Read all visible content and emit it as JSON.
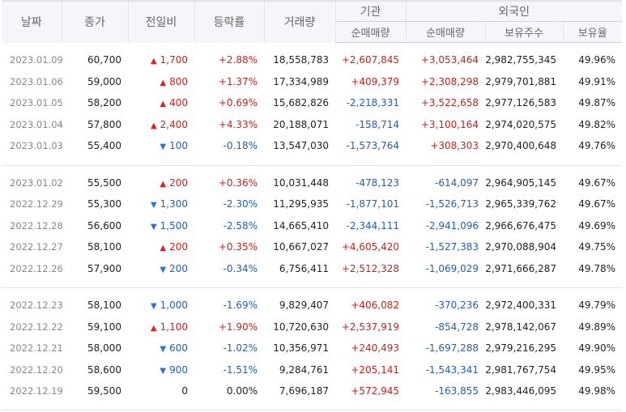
{
  "headers": {
    "date": "날짜",
    "close": "종가",
    "change": "전일비",
    "rate": "등락률",
    "volume": "거래량",
    "institution": "기관",
    "foreign": "외국인",
    "inst_net": "순매매량",
    "foreign_net": "순매매량",
    "foreign_holdings": "보유주수",
    "foreign_ratio": "보유율"
  },
  "colors": {
    "up": "#c4231b",
    "down": "#1f5fb5",
    "header_bg": "#f4f6f9"
  },
  "groups": [
    [
      {
        "date": "2023.01.09",
        "close": "60,700",
        "dir": "up",
        "change": "1,700",
        "rate": "+2.88%",
        "volume": "18,558,783",
        "inst": "+2,607,845",
        "fnet": "+3,053,464",
        "fhold": "2,982,755,345",
        "fratio": "49.96%"
      },
      {
        "date": "2023.01.06",
        "close": "59,000",
        "dir": "up",
        "change": "800",
        "rate": "+1.37%",
        "volume": "17,334,989",
        "inst": "+409,379",
        "fnet": "+2,308,298",
        "fhold": "2,979,701,881",
        "fratio": "49.91%"
      },
      {
        "date": "2023.01.05",
        "close": "58,200",
        "dir": "up",
        "change": "400",
        "rate": "+0.69%",
        "volume": "15,682,826",
        "inst": "-2,218,331",
        "fnet": "+3,522,658",
        "fhold": "2,977,126,583",
        "fratio": "49.87%"
      },
      {
        "date": "2023.01.04",
        "close": "57,800",
        "dir": "up",
        "change": "2,400",
        "rate": "+4.33%",
        "volume": "20,188,071",
        "inst": "-158,714",
        "fnet": "+3,100,164",
        "fhold": "2,974,020,575",
        "fratio": "49.82%"
      },
      {
        "date": "2023.01.03",
        "close": "55,400",
        "dir": "down",
        "change": "100",
        "rate": "-0.18%",
        "volume": "13,547,030",
        "inst": "-1,573,764",
        "fnet": "+308,303",
        "fhold": "2,970,400,648",
        "fratio": "49.76%"
      }
    ],
    [
      {
        "date": "2023.01.02",
        "close": "55,500",
        "dir": "up",
        "change": "200",
        "rate": "+0.36%",
        "volume": "10,031,448",
        "inst": "-478,123",
        "fnet": "-614,097",
        "fhold": "2,964,905,145",
        "fratio": "49.67%"
      },
      {
        "date": "2022.12.29",
        "close": "55,300",
        "dir": "down",
        "change": "1,300",
        "rate": "-2.30%",
        "volume": "11,295,935",
        "inst": "-1,877,101",
        "fnet": "-1,526,713",
        "fhold": "2,965,339,762",
        "fratio": "49.67%"
      },
      {
        "date": "2022.12.28",
        "close": "56,600",
        "dir": "down",
        "change": "1,500",
        "rate": "-2.58%",
        "volume": "14,665,410",
        "inst": "-2,344,111",
        "fnet": "-2,941,096",
        "fhold": "2,966,676,475",
        "fratio": "49.69%"
      },
      {
        "date": "2022.12.27",
        "close": "58,100",
        "dir": "up",
        "change": "200",
        "rate": "+0.35%",
        "volume": "10,667,027",
        "inst": "+4,605,420",
        "fnet": "-1,527,383",
        "fhold": "2,970,088,904",
        "fratio": "49.75%"
      },
      {
        "date": "2022.12.26",
        "close": "57,900",
        "dir": "down",
        "change": "200",
        "rate": "-0.34%",
        "volume": "6,756,411",
        "inst": "+2,512,328",
        "fnet": "-1,069,029",
        "fhold": "2,971,666,287",
        "fratio": "49.78%"
      }
    ],
    [
      {
        "date": "2022.12.23",
        "close": "58,100",
        "dir": "down",
        "change": "1,000",
        "rate": "-1.69%",
        "volume": "9,829,407",
        "inst": "+406,082",
        "fnet": "-370,236",
        "fhold": "2,972,400,331",
        "fratio": "49.79%"
      },
      {
        "date": "2022.12.22",
        "close": "59,100",
        "dir": "up",
        "change": "1,100",
        "rate": "+1.90%",
        "volume": "10,720,630",
        "inst": "+2,537,919",
        "fnet": "-854,728",
        "fhold": "2,978,142,067",
        "fratio": "49.89%"
      },
      {
        "date": "2022.12.21",
        "close": "58,000",
        "dir": "down",
        "change": "600",
        "rate": "-1.02%",
        "volume": "10,356,971",
        "inst": "+240,493",
        "fnet": "-1,697,288",
        "fhold": "2,979,216,295",
        "fratio": "49.90%"
      },
      {
        "date": "2022.12.20",
        "close": "58,600",
        "dir": "down",
        "change": "900",
        "rate": "-1.51%",
        "volume": "9,284,761",
        "inst": "+205,141",
        "fnet": "-1,543,341",
        "fhold": "2,981,767,754",
        "fratio": "49.95%"
      },
      {
        "date": "2022.12.19",
        "close": "59,500",
        "dir": "flat",
        "change": "0",
        "rate": "0.00%",
        "volume": "7,696,187",
        "inst": "+572,945",
        "fnet": "-163,855",
        "fhold": "2,983,446,095",
        "fratio": "49.98%"
      }
    ]
  ]
}
